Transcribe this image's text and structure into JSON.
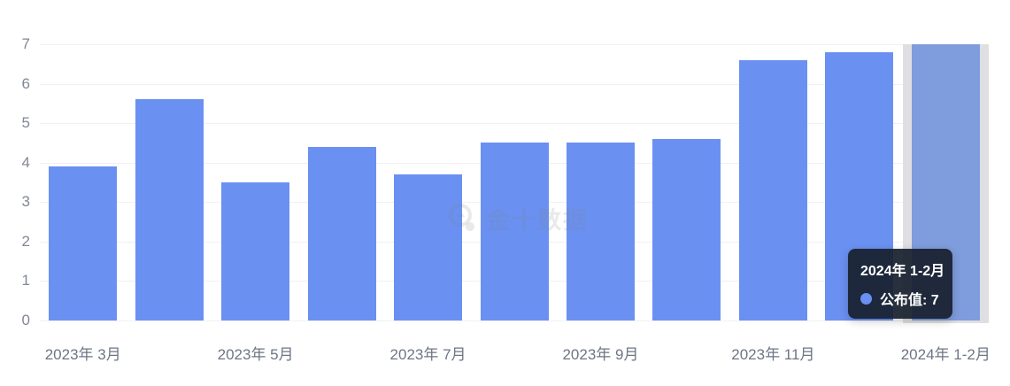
{
  "chart_data": {
    "type": "bar",
    "categories": [
      "2023年 3月",
      "",
      "2023年 5月",
      "",
      "2023年 7月",
      "",
      "2023年 9月",
      "",
      "2023年 11月",
      "",
      "2024年 1-2月"
    ],
    "values": [
      3.9,
      5.6,
      3.5,
      4.4,
      3.7,
      4.5,
      4.5,
      4.6,
      6.6,
      6.8,
      7
    ],
    "series_name": "公布值",
    "title": "",
    "xlabel": "",
    "ylabel": "",
    "ylim": [
      0,
      7
    ],
    "y_ticks": [
      0,
      1,
      2,
      3,
      4,
      5,
      6,
      7
    ],
    "grid": true,
    "legend_position": "none",
    "bar_color": "#6a90f1",
    "highlighted_index": 10,
    "highlighted_bar_color": "#7f9cdc",
    "highlight_band_color": "#dfdfe2"
  },
  "tooltip": {
    "title": "2024年 1-2月",
    "series_label": "公布值",
    "value": "7",
    "value_line": "公布值: 7",
    "dot_color": "#6a90f1",
    "background_color": "#19202e"
  },
  "watermark": {
    "text": "金十数据"
  }
}
